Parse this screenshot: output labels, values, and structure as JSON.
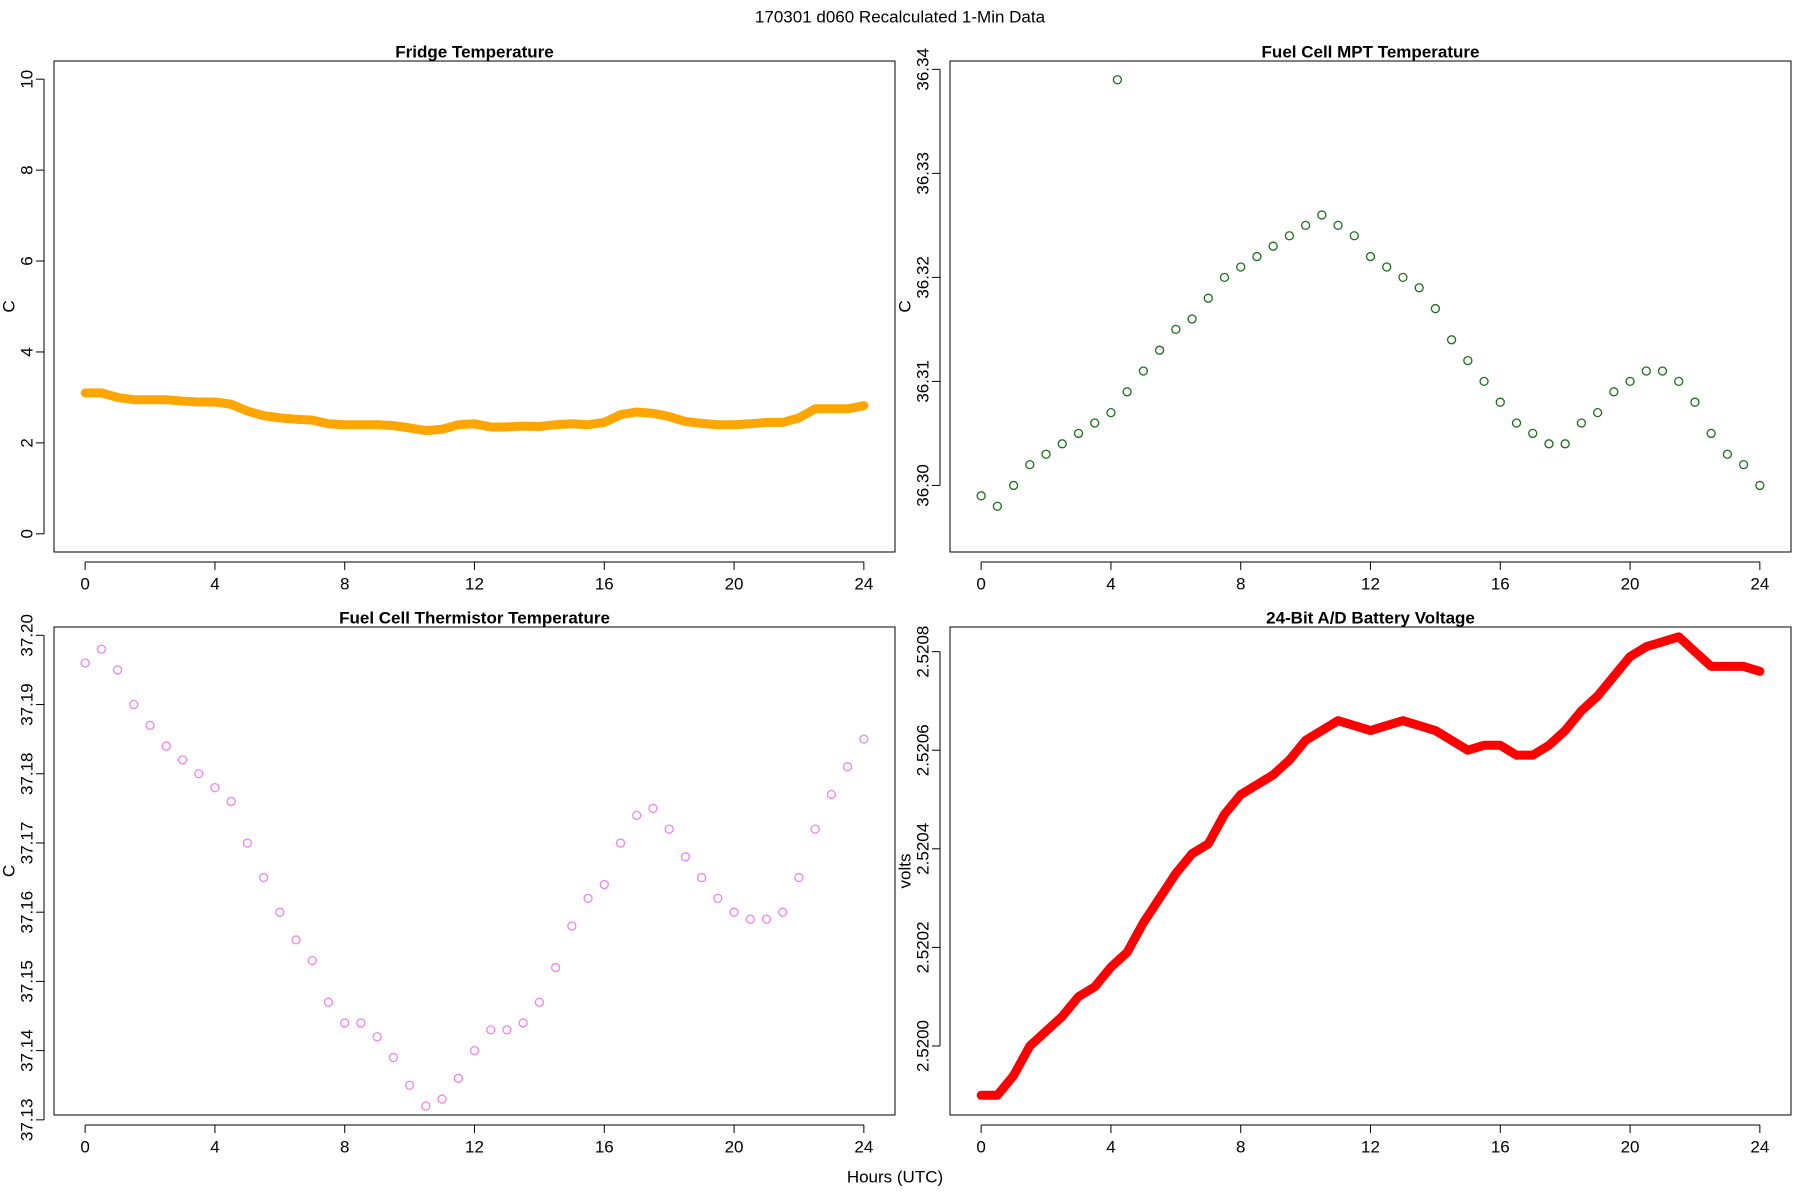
{
  "title": "170301   d060   Recalculated 1-Min Data",
  "xlabel": "Hours (UTC)",
  "chart_data": [
    {
      "type": "line",
      "title": "Fridge Temperature",
      "ylabel": "C",
      "color": "#ffa500",
      "x": [
        0,
        0.5,
        1,
        1.5,
        2,
        2.5,
        3,
        3.5,
        4,
        4.5,
        5,
        5.5,
        6,
        6.5,
        7,
        7.5,
        8,
        8.5,
        9,
        9.5,
        10,
        10.5,
        11,
        11.5,
        12,
        12.5,
        13,
        13.5,
        14,
        14.5,
        15,
        15.5,
        16,
        16.5,
        17,
        17.5,
        18,
        18.5,
        19,
        19.5,
        20,
        20.5,
        21,
        21.5,
        22,
        22.5,
        23,
        23.5,
        24
      ],
      "values": [
        3.1,
        3.1,
        3.0,
        2.95,
        2.95,
        2.95,
        2.92,
        2.9,
        2.9,
        2.85,
        2.7,
        2.6,
        2.55,
        2.52,
        2.5,
        2.42,
        2.4,
        2.4,
        2.4,
        2.38,
        2.33,
        2.27,
        2.3,
        2.4,
        2.42,
        2.35,
        2.35,
        2.37,
        2.36,
        2.4,
        2.42,
        2.4,
        2.45,
        2.62,
        2.68,
        2.65,
        2.58,
        2.47,
        2.43,
        2.4,
        2.4,
        2.42,
        2.45,
        2.45,
        2.55,
        2.75,
        2.75,
        2.75,
        2.82
      ],
      "xlim": [
        -0.96,
        24.96
      ],
      "xticks": [
        0,
        4,
        8,
        12,
        16,
        20,
        24
      ],
      "ylim": [
        -0.4,
        10.4
      ],
      "yticks": [
        0,
        2,
        4,
        6,
        8,
        10
      ]
    },
    {
      "type": "scatter",
      "title": "Fuel Cell MPT Temperature",
      "ylabel": "C",
      "color": "#1a6e1a",
      "x": [
        0,
        0.5,
        1,
        1.5,
        2,
        2.5,
        3,
        3.5,
        4,
        4.2,
        4.5,
        5,
        5.5,
        6,
        6.5,
        7,
        7.5,
        8,
        8.5,
        9,
        9.5,
        10,
        10.5,
        11,
        11.5,
        12,
        12.5,
        13,
        13.5,
        14,
        14.5,
        15,
        15.5,
        16,
        16.5,
        17,
        17.5,
        18,
        18.5,
        19,
        19.5,
        20,
        20.5,
        21,
        21.5,
        22,
        22.5,
        23,
        23.5,
        24
      ],
      "values": [
        36.299,
        36.298,
        36.3,
        36.302,
        36.303,
        36.304,
        36.305,
        36.306,
        36.307,
        36.339,
        36.309,
        36.311,
        36.313,
        36.315,
        36.316,
        36.318,
        36.32,
        36.321,
        36.322,
        36.323,
        36.324,
        36.325,
        36.326,
        36.325,
        36.324,
        36.322,
        36.321,
        36.32,
        36.319,
        36.317,
        36.314,
        36.312,
        36.31,
        36.308,
        36.306,
        36.305,
        36.304,
        36.304,
        36.306,
        36.307,
        36.309,
        36.31,
        36.311,
        36.311,
        36.31,
        36.308,
        36.305,
        36.303,
        36.302,
        36.3
      ],
      "xlim": [
        -0.96,
        24.96
      ],
      "xticks": [
        0,
        4,
        8,
        12,
        16,
        20,
        24
      ],
      "ylim": [
        36.2936,
        36.3408
      ],
      "yticks": [
        {
          "value": 36.3,
          "label": "36.30"
        },
        36.31,
        36.32,
        36.33,
        36.34
      ]
    },
    {
      "type": "scatter",
      "title": "Fuel Cell Thermistor Temperature",
      "ylabel": "C",
      "color": "#ee82ee",
      "x": [
        0,
        0.5,
        1,
        1.5,
        2,
        2.5,
        3,
        3.5,
        4,
        4.5,
        5,
        5.5,
        6,
        6.5,
        7,
        7.5,
        8,
        8.5,
        9,
        9.5,
        10,
        10.5,
        11,
        11.5,
        12,
        12.5,
        13,
        13.5,
        14,
        14.5,
        15,
        15.5,
        16,
        16.5,
        17,
        17.5,
        18,
        18.5,
        19,
        19.5,
        20,
        20.5,
        21,
        21.5,
        22,
        22.5,
        23,
        23.5,
        24
      ],
      "values": [
        37.196,
        37.198,
        37.195,
        37.19,
        37.187,
        37.184,
        37.182,
        37.18,
        37.178,
        37.176,
        37.17,
        37.165,
        37.16,
        37.156,
        37.153,
        37.147,
        37.144,
        37.144,
        37.142,
        37.139,
        37.135,
        37.132,
        37.133,
        37.136,
        37.14,
        37.143,
        37.143,
        37.144,
        37.147,
        37.152,
        37.158,
        37.162,
        37.164,
        37.17,
        37.174,
        37.175,
        37.172,
        37.168,
        37.165,
        37.162,
        37.16,
        37.159,
        37.159,
        37.16,
        37.165,
        37.172,
        37.177,
        37.181,
        37.185
      ],
      "xlim": [
        -0.96,
        24.96
      ],
      "xticks": [
        0,
        4,
        8,
        12,
        16,
        20,
        24
      ],
      "ylim": [
        37.1307,
        37.2012
      ],
      "yticks": [
        37.13,
        37.14,
        37.15,
        37.16,
        37.17,
        37.18,
        37.19,
        {
          "value": 37.2,
          "label": "37.20"
        }
      ]
    },
    {
      "type": "line",
      "title": "24-Bit A/D Battery Voltage",
      "ylabel": "volts",
      "color": "#ff0000",
      "x": [
        0,
        0.5,
        1,
        1.5,
        2,
        2.5,
        3,
        3.5,
        4,
        4.5,
        5,
        5.5,
        6,
        6.5,
        7,
        7.5,
        8,
        8.5,
        9,
        9.5,
        10,
        10.5,
        11,
        11.5,
        12,
        12.5,
        13,
        13.5,
        14,
        14.5,
        15,
        15.5,
        16,
        16.5,
        17,
        17.5,
        18,
        18.5,
        19,
        19.5,
        20,
        20.5,
        21,
        21.5,
        22,
        22.5,
        23,
        23.5,
        24
      ],
      "values": [
        2.5199,
        2.5199,
        2.51994,
        2.52,
        2.52003,
        2.52006,
        2.5201,
        2.52012,
        2.52016,
        2.52019,
        2.52025,
        2.5203,
        2.52035,
        2.52039,
        2.52041,
        2.52047,
        2.52051,
        2.52053,
        2.52055,
        2.52058,
        2.52062,
        2.52064,
        2.52066,
        2.52065,
        2.52064,
        2.52065,
        2.52066,
        2.52065,
        2.52064,
        2.52062,
        2.5206,
        2.52061,
        2.52061,
        2.52059,
        2.52059,
        2.52061,
        2.52064,
        2.52068,
        2.52071,
        2.52075,
        2.52079,
        2.52081,
        2.52082,
        2.52083,
        2.5208,
        2.52077,
        2.52077,
        2.52077,
        2.52076
      ],
      "xlim": [
        -0.96,
        24.96
      ],
      "xticks": [
        0,
        4,
        8,
        12,
        16,
        20,
        24
      ],
      "ylim": [
        2.51986,
        2.52085
      ],
      "yticks": [
        {
          "value": 2.52,
          "label": "2.5200"
        },
        2.5202,
        2.5204,
        2.5206,
        2.5208
      ]
    }
  ]
}
